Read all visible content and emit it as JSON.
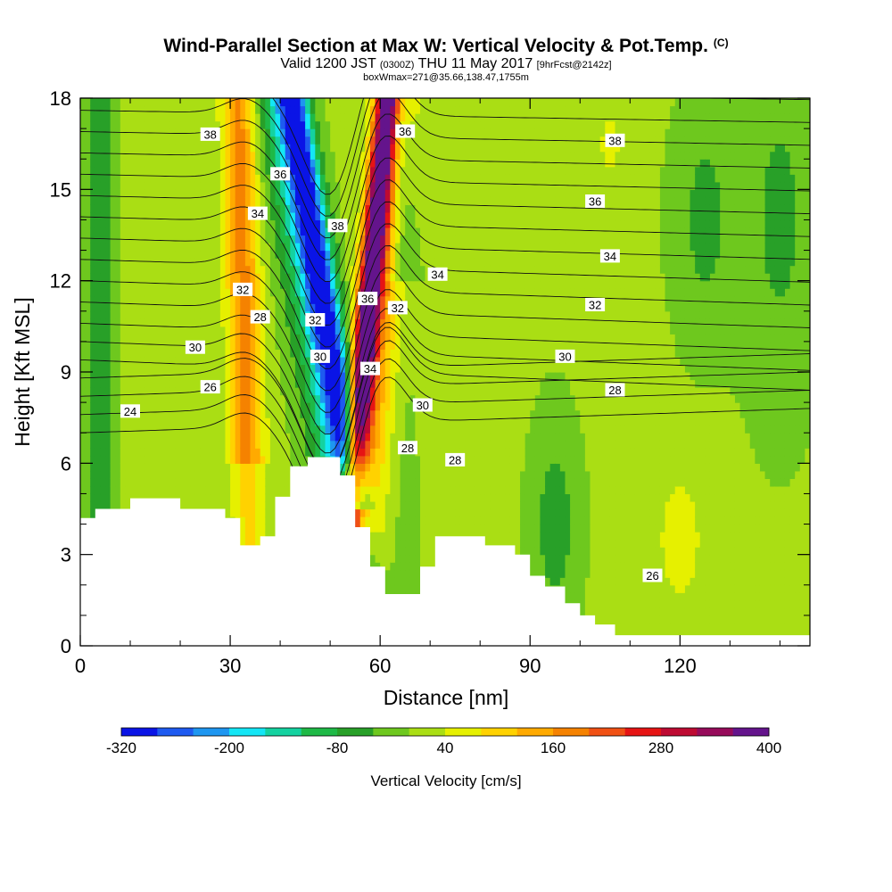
{
  "header": {
    "title": "Wind-Parallel Section at Max W: Vertical Velocity & Pot.Temp.",
    "title_mark": "(C)",
    "valid_prefix": "Valid 1200 JST",
    "valid_utc": "(0300Z)",
    "valid_date": "THU 11 May 2017",
    "forecast": "[9hrFcst@2142z]",
    "box_info": "boxWmax=271@35.66,138.47,1755m"
  },
  "chart_data": {
    "type": "heatmap",
    "xlabel": "Distance [nm]",
    "ylabel": "Height [Kft MSL]",
    "xlim": [
      0,
      146
    ],
    "ylim": [
      0,
      18
    ],
    "x_ticks": [
      0,
      30,
      60,
      90,
      120
    ],
    "y_ticks": [
      0,
      3,
      6,
      9,
      12,
      15,
      18
    ],
    "colorbar": {
      "label": "Vertical Velocity [cm/s]",
      "tick_labels": [
        "-320",
        "-200",
        "-80",
        "40",
        "160",
        "280",
        "400"
      ],
      "tick_values": [
        -320,
        -200,
        -80,
        40,
        160,
        280,
        400
      ],
      "colors": [
        "#0a14e6",
        "#1e5af0",
        "#1e96f0",
        "#14e6f5",
        "#14d2a0",
        "#1eb946",
        "#28a028",
        "#6ec81e",
        "#aade14",
        "#e6f000",
        "#ffd200",
        "#ffaa00",
        "#f58200",
        "#f05014",
        "#e61414",
        "#be0a32",
        "#960a5a",
        "#64148c"
      ]
    },
    "terrain_profile": [
      [
        0,
        4.2
      ],
      [
        3,
        4.2
      ],
      [
        3,
        4.5
      ],
      [
        10,
        4.5
      ],
      [
        10,
        4.85
      ],
      [
        20,
        4.85
      ],
      [
        20,
        4.5
      ],
      [
        29,
        4.5
      ],
      [
        29,
        4.2
      ],
      [
        32,
        4.2
      ],
      [
        32,
        3.3
      ],
      [
        36,
        3.3
      ],
      [
        36,
        3.6
      ],
      [
        39,
        3.6
      ],
      [
        39,
        4.9
      ],
      [
        42,
        4.9
      ],
      [
        42,
        5.9
      ],
      [
        45.5,
        5.9
      ],
      [
        45.5,
        6.2
      ],
      [
        52,
        6.2
      ],
      [
        52,
        5.6
      ],
      [
        55,
        5.6
      ],
      [
        55,
        3.9
      ],
      [
        58,
        3.9
      ],
      [
        58,
        2.6
      ],
      [
        61,
        2.6
      ],
      [
        61,
        1.7
      ],
      [
        68,
        1.7
      ],
      [
        68,
        2.6
      ],
      [
        71,
        2.6
      ],
      [
        71,
        3.6
      ],
      [
        81,
        3.6
      ],
      [
        81,
        3.3
      ],
      [
        87,
        3.3
      ],
      [
        87,
        3.0
      ],
      [
        90,
        3.0
      ],
      [
        90,
        2.3
      ],
      [
        93,
        2.3
      ],
      [
        93,
        1.95
      ],
      [
        97,
        1.95
      ],
      [
        97,
        1.4
      ],
      [
        100,
        1.4
      ],
      [
        100,
        1.0
      ],
      [
        103,
        1.0
      ],
      [
        103,
        0.7
      ],
      [
        107,
        0.7
      ],
      [
        107,
        0.35
      ],
      [
        146,
        0.35
      ]
    ],
    "theta_contour_labels": [
      {
        "text": "38",
        "x": 26,
        "y": 16.8
      },
      {
        "text": "36",
        "x": 40,
        "y": 15.5
      },
      {
        "text": "34",
        "x": 35.5,
        "y": 14.2
      },
      {
        "text": "38",
        "x": 51.5,
        "y": 13.8
      },
      {
        "text": "36",
        "x": 65,
        "y": 16.9
      },
      {
        "text": "38",
        "x": 107,
        "y": 16.6
      },
      {
        "text": "36",
        "x": 103,
        "y": 14.6
      },
      {
        "text": "34",
        "x": 106,
        "y": 12.8
      },
      {
        "text": "34",
        "x": 71.5,
        "y": 12.2
      },
      {
        "text": "32",
        "x": 32.5,
        "y": 11.7
      },
      {
        "text": "36",
        "x": 57.5,
        "y": 11.4
      },
      {
        "text": "32",
        "x": 63.5,
        "y": 11.1
      },
      {
        "text": "32",
        "x": 47,
        "y": 10.7
      },
      {
        "text": "32",
        "x": 103,
        "y": 11.2
      },
      {
        "text": "28",
        "x": 36,
        "y": 10.8
      },
      {
        "text": "30",
        "x": 23,
        "y": 9.8
      },
      {
        "text": "30",
        "x": 48,
        "y": 9.5
      },
      {
        "text": "30",
        "x": 97,
        "y": 9.5
      },
      {
        "text": "34",
        "x": 58,
        "y": 9.1
      },
      {
        "text": "26",
        "x": 26,
        "y": 8.5
      },
      {
        "text": "28",
        "x": 107,
        "y": 8.4
      },
      {
        "text": "30",
        "x": 68.5,
        "y": 7.9
      },
      {
        "text": "24",
        "x": 10,
        "y": 7.7
      },
      {
        "text": "28",
        "x": 65.5,
        "y": 6.5
      },
      {
        "text": "28",
        "x": 75,
        "y": 6.1
      },
      {
        "text": "26",
        "x": 114.5,
        "y": 2.3
      }
    ]
  }
}
